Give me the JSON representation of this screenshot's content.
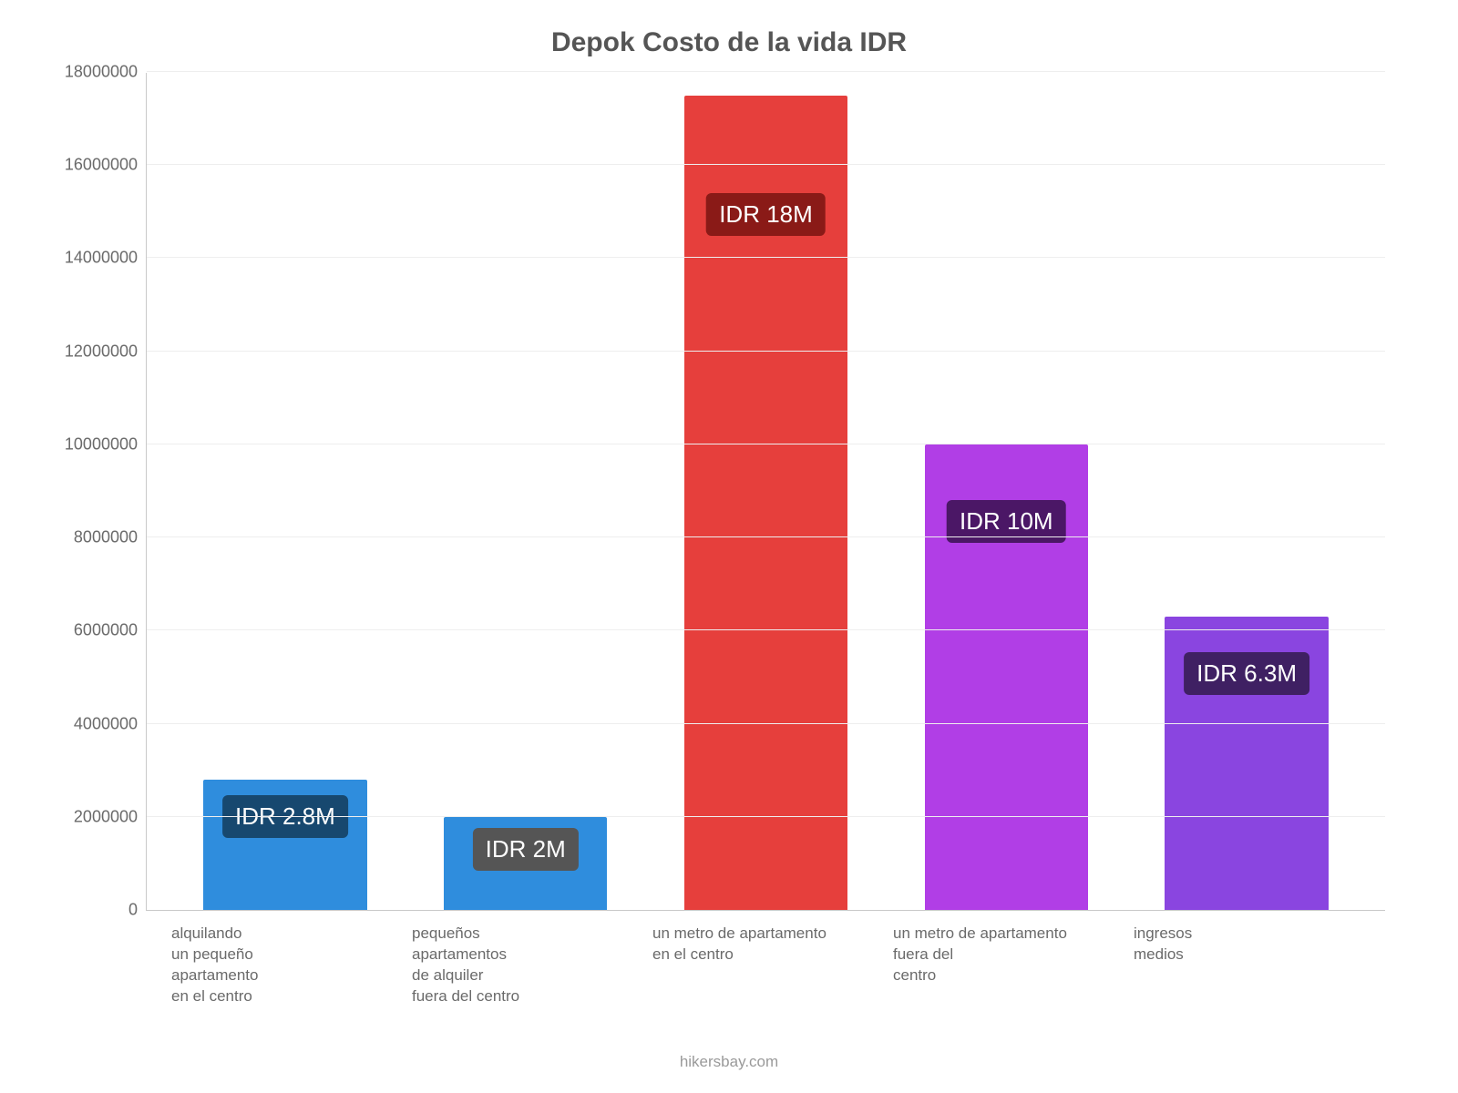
{
  "chart": {
    "type": "bar",
    "title": "Depok Costo de la vida IDR",
    "title_fontsize": 30,
    "title_color": "#555555",
    "background_color": "#ffffff",
    "grid_color": "#eeeeee",
    "axis_color": "#c9c9c9",
    "ylim": [
      0,
      18000000
    ],
    "ytick_step": 2000000,
    "yticks": [
      "0",
      "2000000",
      "4000000",
      "6000000",
      "8000000",
      "10000000",
      "12000000",
      "14000000",
      "16000000",
      "18000000"
    ],
    "ylabel_fontsize": 18,
    "ylabel_color": "#6a6a6a",
    "xlabel_fontsize": 17,
    "xlabel_color": "#6a6a6a",
    "bar_width_ratio": 0.68,
    "categories": [
      "alquilando\nun pequeño\napartamento\nen el centro",
      "pequeños\napartamentos\nde alquiler\nfuera del centro",
      "un metro de apartamento\nen el centro",
      "un metro de apartamento\nfuera del\ncentro",
      "ingresos\nmedios"
    ],
    "values": [
      2800000,
      2000000,
      17500000,
      10000000,
      6300000
    ],
    "bar_colors": [
      "#2f8ddd",
      "#2f8ddd",
      "#e63f3c",
      "#b13ee6",
      "#8a45e0"
    ],
    "badge_labels": [
      "IDR 2.8M",
      "IDR 2M",
      "IDR 18M",
      "IDR 10M",
      "IDR 6.3M"
    ],
    "badge_bg_colors": [
      "#17486f",
      "#555555",
      "#8a1a17",
      "#4b1766",
      "#3f2063"
    ],
    "badge_text_color": "#ffffff",
    "badge_fontsize": 26,
    "badge_radius": 6,
    "attribution": "hikersbay.com",
    "attribution_fontsize": 17,
    "attribution_color": "#9a9a9a"
  }
}
